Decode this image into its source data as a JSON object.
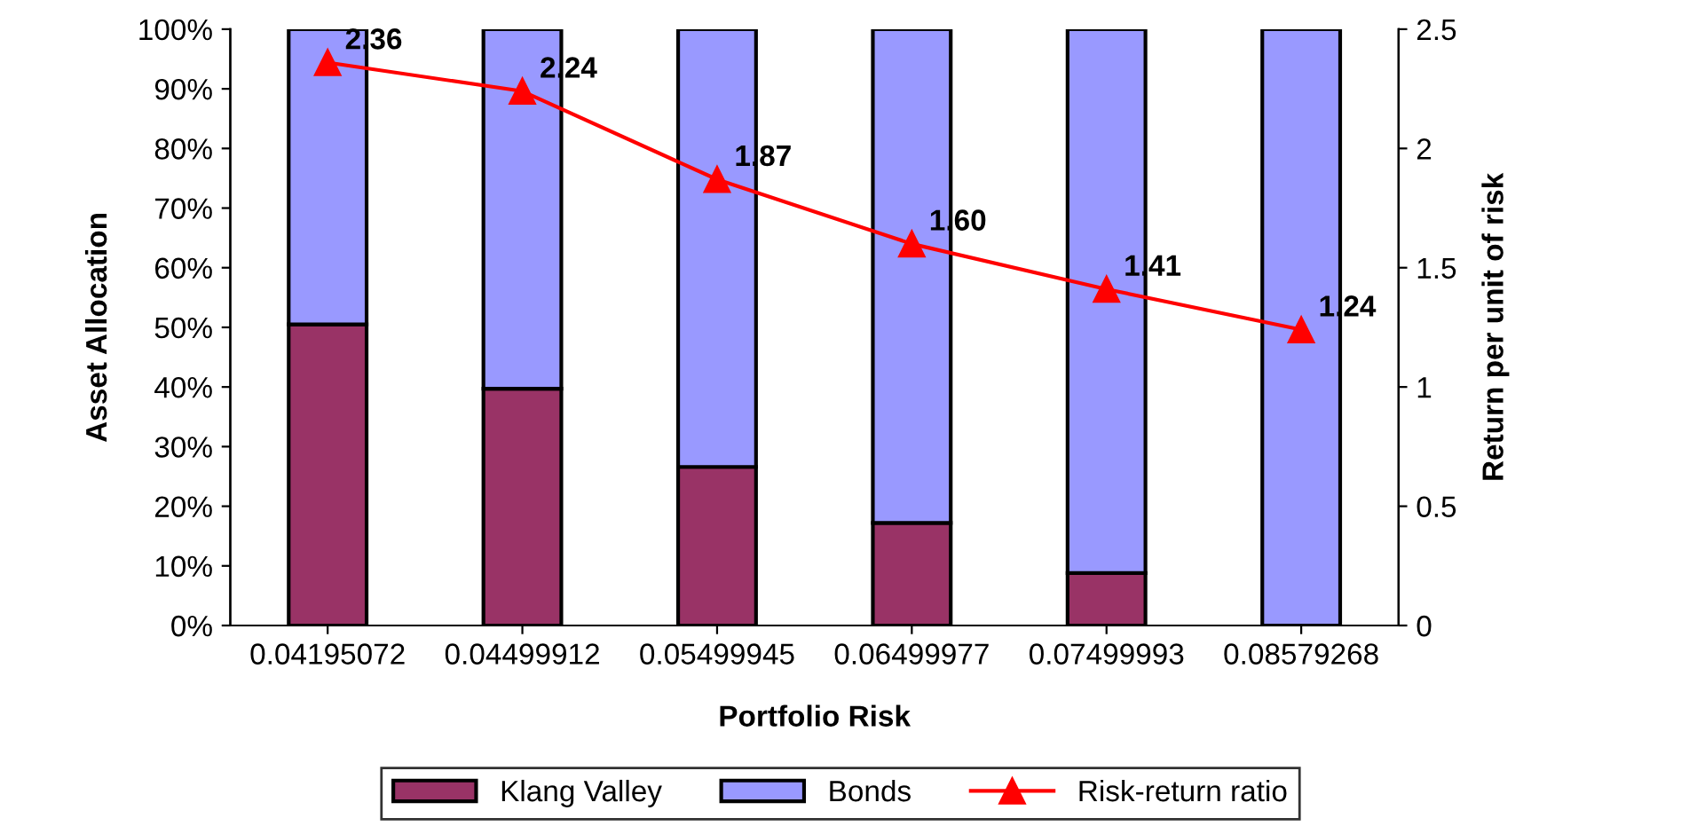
{
  "chart_data": {
    "type": "bar",
    "stacked": true,
    "xlabel": "Portfolio Risk",
    "ylabel": "Asset Allocation",
    "y2label": "Return per unit of risk",
    "categories": [
      "0.04195072",
      "0.04499912",
      "0.05499945",
      "0.06499977",
      "0.07499993",
      "0.08579268"
    ],
    "ylim": [
      0,
      100
    ],
    "yticks": [
      {
        "value": 0,
        "label": "0%"
      },
      {
        "value": 10,
        "label": "10%"
      },
      {
        "value": 20,
        "label": "20%"
      },
      {
        "value": 30,
        "label": "30%"
      },
      {
        "value": 40,
        "label": "40%"
      },
      {
        "value": 50,
        "label": "50%"
      },
      {
        "value": 60,
        "label": "60%"
      },
      {
        "value": 70,
        "label": "70%"
      },
      {
        "value": 80,
        "label": "80%"
      },
      {
        "value": 90,
        "label": "90%"
      },
      {
        "value": 100,
        "label": "100%"
      }
    ],
    "y2lim": [
      0,
      2.5
    ],
    "y2ticks": [
      0,
      0.5,
      1,
      1.5,
      2,
      2.5
    ],
    "series": [
      {
        "name": "Klang Valley",
        "color": "#993366",
        "values": [
          50.5,
          39.7,
          26.6,
          17.2,
          8.8,
          0
        ]
      },
      {
        "name": "Bonds",
        "color": "#9999ff",
        "values": [
          49.5,
          60.3,
          73.4,
          82.8,
          91.2,
          100
        ]
      },
      {
        "name": "Risk-return ratio",
        "type": "line",
        "axis": "y2",
        "color": "#ff0000",
        "marker": "triangle",
        "data_labels": true,
        "values": [
          2.36,
          2.24,
          1.87,
          1.6,
          1.41,
          1.24
        ],
        "value_labels": [
          "2.36",
          "2.24",
          "1.87",
          "1.60",
          "1.41",
          "1.24"
        ]
      }
    ],
    "grid": false,
    "legend": "bottom"
  }
}
